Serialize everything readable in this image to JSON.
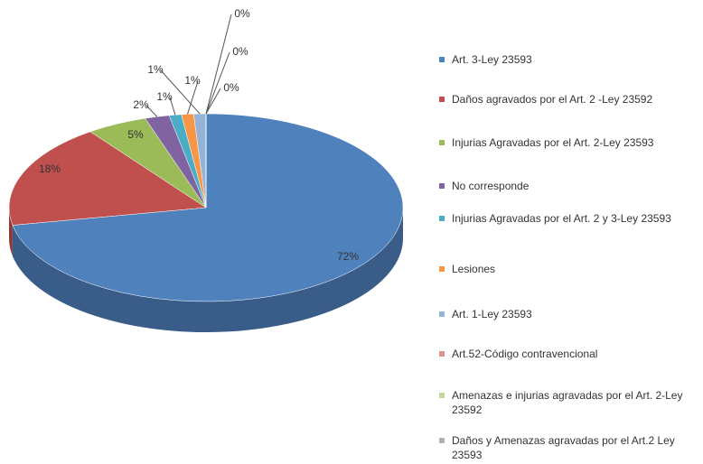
{
  "chart_data": {
    "type": "pie",
    "categories": [
      "Art. 3-Ley 23593",
      "Daños agravados por el Art. 2 -Ley 23592",
      "Injurias Agravadas por el Art. 2-Ley 23593",
      "No corresponde",
      "Injurias Agravadas por el Art. 2 y 3-Ley 23593",
      "Lesiones",
      "Art. 1-Ley 23593",
      "Art.52-Código contravencional",
      "Amenazas e injurias agravadas por el Art. 2-Ley 23592",
      "Daños y Amenazas agravadas por el Art.2 Ley 23593"
    ],
    "values": [
      72,
      18,
      5,
      2,
      1,
      1,
      1,
      0,
      0,
      0
    ],
    "value_labels": [
      "72%",
      "18%",
      "5%",
      "2%",
      "1%",
      "1%",
      "1%",
      "0%",
      "0%",
      "0%"
    ],
    "colors": [
      "#4f81bd",
      "#c0504d",
      "#9bbb59",
      "#8064a2",
      "#4bacc6",
      "#f79646",
      "#95b3d7",
      "#d99694",
      "#c3d69b",
      "#b2b2b2"
    ]
  }
}
